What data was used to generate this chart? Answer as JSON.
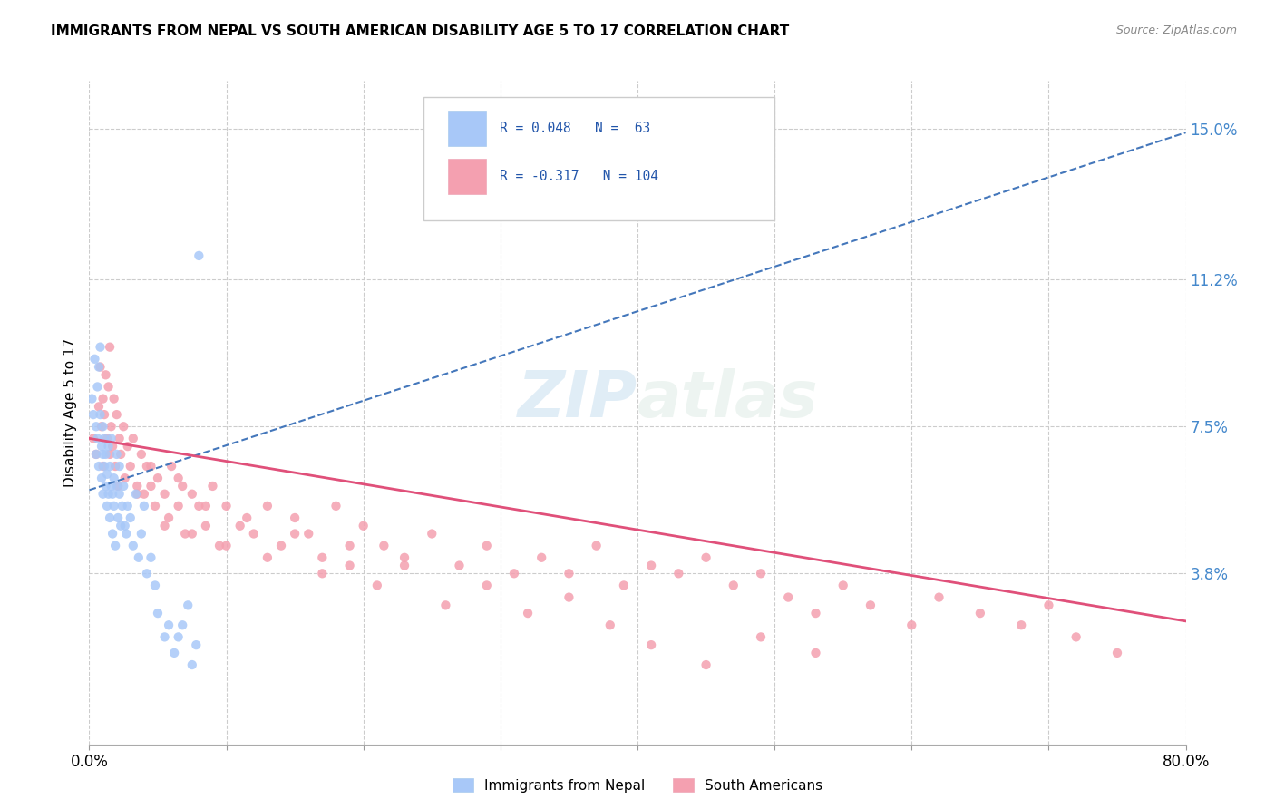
{
  "title": "IMMIGRANTS FROM NEPAL VS SOUTH AMERICAN DISABILITY AGE 5 TO 17 CORRELATION CHART",
  "source": "Source: ZipAtlas.com",
  "ylabel": "Disability Age 5 to 17",
  "ytick_labels": [
    "3.8%",
    "7.5%",
    "11.2%",
    "15.0%"
  ],
  "ytick_values": [
    0.038,
    0.075,
    0.112,
    0.15
  ],
  "xlim": [
    0.0,
    0.8
  ],
  "ylim": [
    -0.005,
    0.162
  ],
  "nepal_color": "#a8c8f8",
  "nepal_line_color": "#4477bb",
  "south_am_color": "#f4a0b0",
  "south_am_line_color": "#e0507a",
  "nepal_R": 0.048,
  "nepal_N": 63,
  "south_am_R": -0.317,
  "south_am_N": 104,
  "watermark_zip": "ZIP",
  "watermark_atlas": "atlas",
  "legend_label_nepal": "Immigrants from Nepal",
  "legend_label_south": "South Americans",
  "nepal_line_x0": 0.0,
  "nepal_line_y0": 0.059,
  "nepal_line_x1": 0.08,
  "nepal_line_y1": 0.068,
  "south_line_x0": 0.0,
  "south_line_y0": 0.072,
  "south_line_x1": 0.8,
  "south_line_y1": 0.026,
  "nepal_scatter_x": [
    0.002,
    0.003,
    0.004,
    0.005,
    0.005,
    0.006,
    0.006,
    0.007,
    0.007,
    0.008,
    0.008,
    0.009,
    0.009,
    0.01,
    0.01,
    0.01,
    0.011,
    0.011,
    0.012,
    0.012,
    0.013,
    0.013,
    0.014,
    0.014,
    0.015,
    0.015,
    0.016,
    0.016,
    0.017,
    0.017,
    0.018,
    0.018,
    0.019,
    0.02,
    0.02,
    0.021,
    0.022,
    0.022,
    0.023,
    0.024,
    0.025,
    0.026,
    0.027,
    0.028,
    0.03,
    0.032,
    0.034,
    0.036,
    0.038,
    0.04,
    0.042,
    0.045,
    0.048,
    0.05,
    0.055,
    0.058,
    0.062,
    0.065,
    0.068,
    0.072,
    0.075,
    0.078,
    0.08
  ],
  "nepal_scatter_y": [
    0.082,
    0.078,
    0.092,
    0.075,
    0.068,
    0.085,
    0.072,
    0.09,
    0.065,
    0.078,
    0.095,
    0.062,
    0.07,
    0.058,
    0.068,
    0.075,
    0.065,
    0.072,
    0.06,
    0.068,
    0.055,
    0.063,
    0.058,
    0.07,
    0.052,
    0.065,
    0.06,
    0.072,
    0.058,
    0.048,
    0.055,
    0.062,
    0.045,
    0.06,
    0.068,
    0.052,
    0.058,
    0.065,
    0.05,
    0.055,
    0.06,
    0.05,
    0.048,
    0.055,
    0.052,
    0.045,
    0.058,
    0.042,
    0.048,
    0.055,
    0.038,
    0.042,
    0.035,
    0.028,
    0.022,
    0.025,
    0.018,
    0.022,
    0.025,
    0.03,
    0.015,
    0.02,
    0.118
  ],
  "south_scatter_x": [
    0.003,
    0.005,
    0.007,
    0.008,
    0.009,
    0.01,
    0.01,
    0.011,
    0.012,
    0.013,
    0.014,
    0.015,
    0.015,
    0.016,
    0.017,
    0.018,
    0.019,
    0.02,
    0.021,
    0.022,
    0.023,
    0.025,
    0.026,
    0.028,
    0.03,
    0.032,
    0.035,
    0.038,
    0.04,
    0.042,
    0.045,
    0.048,
    0.05,
    0.055,
    0.058,
    0.06,
    0.065,
    0.068,
    0.07,
    0.075,
    0.08,
    0.085,
    0.09,
    0.095,
    0.1,
    0.11,
    0.12,
    0.13,
    0.14,
    0.15,
    0.16,
    0.17,
    0.18,
    0.19,
    0.2,
    0.215,
    0.23,
    0.25,
    0.27,
    0.29,
    0.31,
    0.33,
    0.35,
    0.37,
    0.39,
    0.41,
    0.43,
    0.45,
    0.47,
    0.49,
    0.51,
    0.53,
    0.55,
    0.57,
    0.6,
    0.62,
    0.65,
    0.68,
    0.7,
    0.72,
    0.75,
    0.035,
    0.045,
    0.055,
    0.065,
    0.075,
    0.085,
    0.1,
    0.115,
    0.13,
    0.15,
    0.17,
    0.19,
    0.21,
    0.23,
    0.26,
    0.29,
    0.32,
    0.35,
    0.38,
    0.41,
    0.45,
    0.49,
    0.53
  ],
  "south_scatter_y": [
    0.072,
    0.068,
    0.08,
    0.09,
    0.075,
    0.082,
    0.065,
    0.078,
    0.088,
    0.072,
    0.085,
    0.068,
    0.095,
    0.075,
    0.07,
    0.082,
    0.065,
    0.078,
    0.06,
    0.072,
    0.068,
    0.075,
    0.062,
    0.07,
    0.065,
    0.072,
    0.06,
    0.068,
    0.058,
    0.065,
    0.06,
    0.055,
    0.062,
    0.058,
    0.052,
    0.065,
    0.055,
    0.06,
    0.048,
    0.058,
    0.055,
    0.05,
    0.06,
    0.045,
    0.055,
    0.05,
    0.048,
    0.055,
    0.045,
    0.052,
    0.048,
    0.042,
    0.055,
    0.04,
    0.05,
    0.045,
    0.042,
    0.048,
    0.04,
    0.045,
    0.038,
    0.042,
    0.038,
    0.045,
    0.035,
    0.04,
    0.038,
    0.042,
    0.035,
    0.038,
    0.032,
    0.028,
    0.035,
    0.03,
    0.025,
    0.032,
    0.028,
    0.025,
    0.03,
    0.022,
    0.018,
    0.058,
    0.065,
    0.05,
    0.062,
    0.048,
    0.055,
    0.045,
    0.052,
    0.042,
    0.048,
    0.038,
    0.045,
    0.035,
    0.04,
    0.03,
    0.035,
    0.028,
    0.032,
    0.025,
    0.02,
    0.015,
    0.022,
    0.018
  ]
}
